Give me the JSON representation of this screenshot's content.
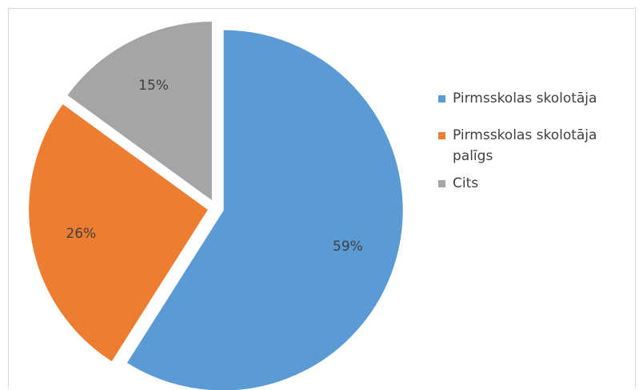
{
  "chart_data": {
    "type": "pie",
    "title": "",
    "categories": [
      "Pirmsskolas skolotāja",
      "Pirmsskolas skolotāja palīgs",
      "Cits"
    ],
    "values": [
      59,
      26,
      15
    ],
    "unit": "%",
    "data_labels": [
      "59%",
      "26%",
      "15%"
    ],
    "colors": [
      "#5b9bd5",
      "#ed7d31",
      "#a5a5a5"
    ],
    "exploded": true,
    "legend_position": "right",
    "legend": [
      {
        "label": "Pirmsskolas skolotāja",
        "color": "#5b9bd5"
      },
      {
        "label": "Pirmsskolas skolotāja palīgs",
        "color": "#ed7d31"
      },
      {
        "label": "Cits",
        "color": "#a5a5a5"
      }
    ]
  }
}
